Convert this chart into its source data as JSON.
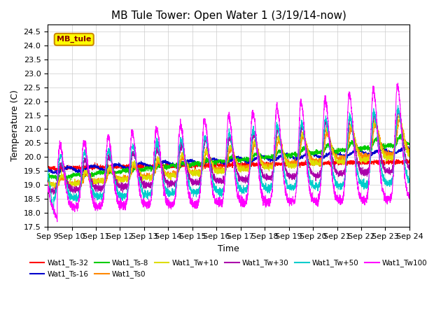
{
  "title": "MB Tule Tower: Open Water 1 (3/19/14-now)",
  "ylabel": "Temperature (C)",
  "xlabel": "Time",
  "ylim": [
    17.5,
    24.75
  ],
  "xlim": [
    0,
    15
  ],
  "xtick_labels": [
    "Sep 9",
    "Sep 10",
    "Sep 11",
    "Sep 12",
    "Sep 13",
    "Sep 14",
    "Sep 15",
    "Sep 16",
    "Sep 17",
    "Sep 18",
    "Sep 19",
    "Sep 20",
    "Sep 21",
    "Sep 22",
    "Sep 23",
    "Sep 24"
  ],
  "series_colors": {
    "Wat1_Ts-32": "#ff0000",
    "Wat1_Ts-16": "#0000cc",
    "Wat1_Ts-8": "#00cc00",
    "Wat1_Ts0": "#ff8800",
    "Wat1_Tw+10": "#dddd00",
    "Wat1_Tw+30": "#aa00aa",
    "Wat1_Tw+50": "#00cccc",
    "Wat1_Tw100": "#ff00ff"
  },
  "legend_box_label": "MB_tule",
  "legend_box_color": "#ffff00",
  "legend_box_border": "#cc8800",
  "bg_color": "#ffffff",
  "grid_color": "#cccccc",
  "title_fontsize": 11,
  "axis_fontsize": 9,
  "tick_fontsize": 8
}
